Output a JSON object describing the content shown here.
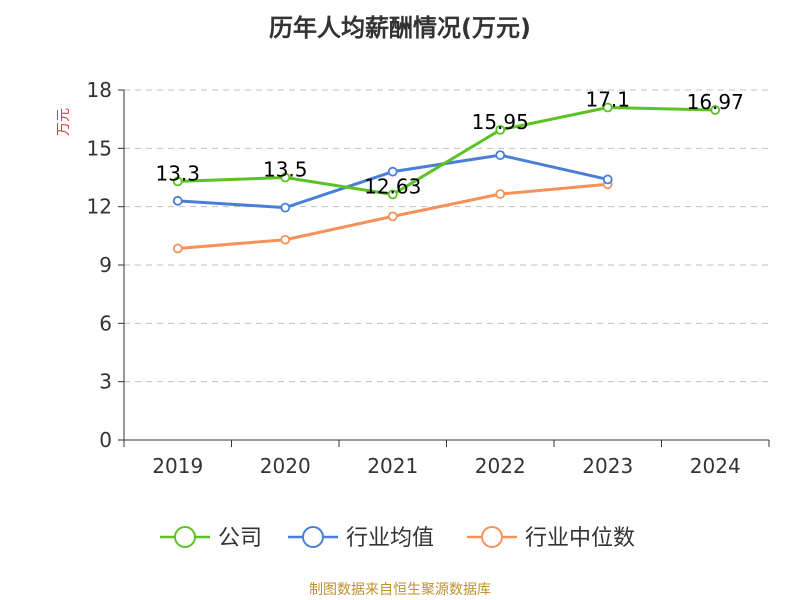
{
  "chart_data": {
    "type": "line",
    "title": "历年人均薪酬情况(万元)",
    "ylabel": "万元",
    "xlabel": "",
    "categories": [
      "2019",
      "2020",
      "2021",
      "2022",
      "2023",
      "2024"
    ],
    "ylim": [
      0,
      18
    ],
    "yticks": [
      0,
      3,
      6,
      9,
      12,
      15,
      18
    ],
    "grid": true,
    "legend_position": "bottom",
    "series": [
      {
        "name": "公司",
        "color": "#5bc224",
        "values": [
          13.3,
          13.5,
          12.63,
          15.95,
          17.1,
          16.97
        ],
        "labels": [
          "13.3",
          "13.5",
          "12.63",
          "15.95",
          "17.1",
          "16.97"
        ]
      },
      {
        "name": "行业均值",
        "color": "#4a7fd8",
        "values": [
          12.3,
          11.95,
          13.8,
          14.65,
          13.4,
          null
        ],
        "labels": []
      },
      {
        "name": "行业中位数",
        "color": "#f5925a",
        "values": [
          9.85,
          10.3,
          11.5,
          12.65,
          13.15,
          null
        ],
        "labels": []
      }
    ]
  },
  "colors": {
    "ylabel": "#e53935",
    "source": "#c0922e",
    "axis": "#333333",
    "grid": "#c0c0c0"
  },
  "source": "制图数据来自恒生聚源数据库"
}
